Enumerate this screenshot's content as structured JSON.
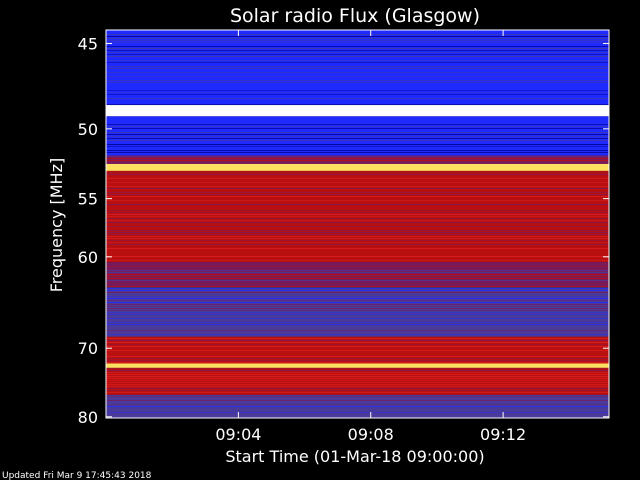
{
  "chart_data": {
    "type": "heatmap",
    "title": "Solar radio Flux (Glasgow)",
    "xlabel": "Start Time (01-Mar-18 09:00:00)",
    "ylabel": "Frequency [MHz]",
    "x_tick_labels": [
      "09:04",
      "09:08",
      "09:12"
    ],
    "x_tick_minutes": [
      4,
      8,
      12
    ],
    "x_range_minutes": [
      0,
      15.2
    ],
    "y_tick_labels": [
      "45",
      "50",
      "55",
      "60",
      "70",
      "80"
    ],
    "y_tick_values": [
      45,
      50,
      55,
      60,
      70,
      80
    ],
    "y_range": [
      44.3,
      80.2
    ],
    "y_scale": "reciprocal",
    "colors": [
      "#00008b",
      "#1f2aff",
      "#4a3a9a",
      "#7a1a5a",
      "#b81010",
      "#e22020",
      "#ff6a00",
      "#ffe060",
      "#ffffff"
    ],
    "bands": [
      {
        "f_from": 44.3,
        "f_to": 48.5,
        "level": 1
      },
      {
        "f_from": 48.5,
        "f_to": 49.2,
        "level": 8
      },
      {
        "f_from": 49.2,
        "f_to": 51.8,
        "level": 1
      },
      {
        "f_from": 51.8,
        "f_to": 52.4,
        "level": 3
      },
      {
        "f_from": 52.4,
        "f_to": 52.9,
        "level": 7
      },
      {
        "f_from": 52.9,
        "f_to": 60.5,
        "level": 4
      },
      {
        "f_from": 60.5,
        "f_to": 63.0,
        "level": 3
      },
      {
        "f_from": 63.0,
        "f_to": 68.5,
        "level": 2
      },
      {
        "f_from": 68.5,
        "f_to": 72.0,
        "level": 4
      },
      {
        "f_from": 72.0,
        "f_to": 72.6,
        "level": 7
      },
      {
        "f_from": 72.6,
        "f_to": 76.5,
        "level": 4
      },
      {
        "f_from": 76.5,
        "f_to": 80.2,
        "level": 2
      }
    ],
    "grid": false
  },
  "footer": {
    "updated_text": "Updated Fri Mar  9 17:45:43 2018"
  }
}
